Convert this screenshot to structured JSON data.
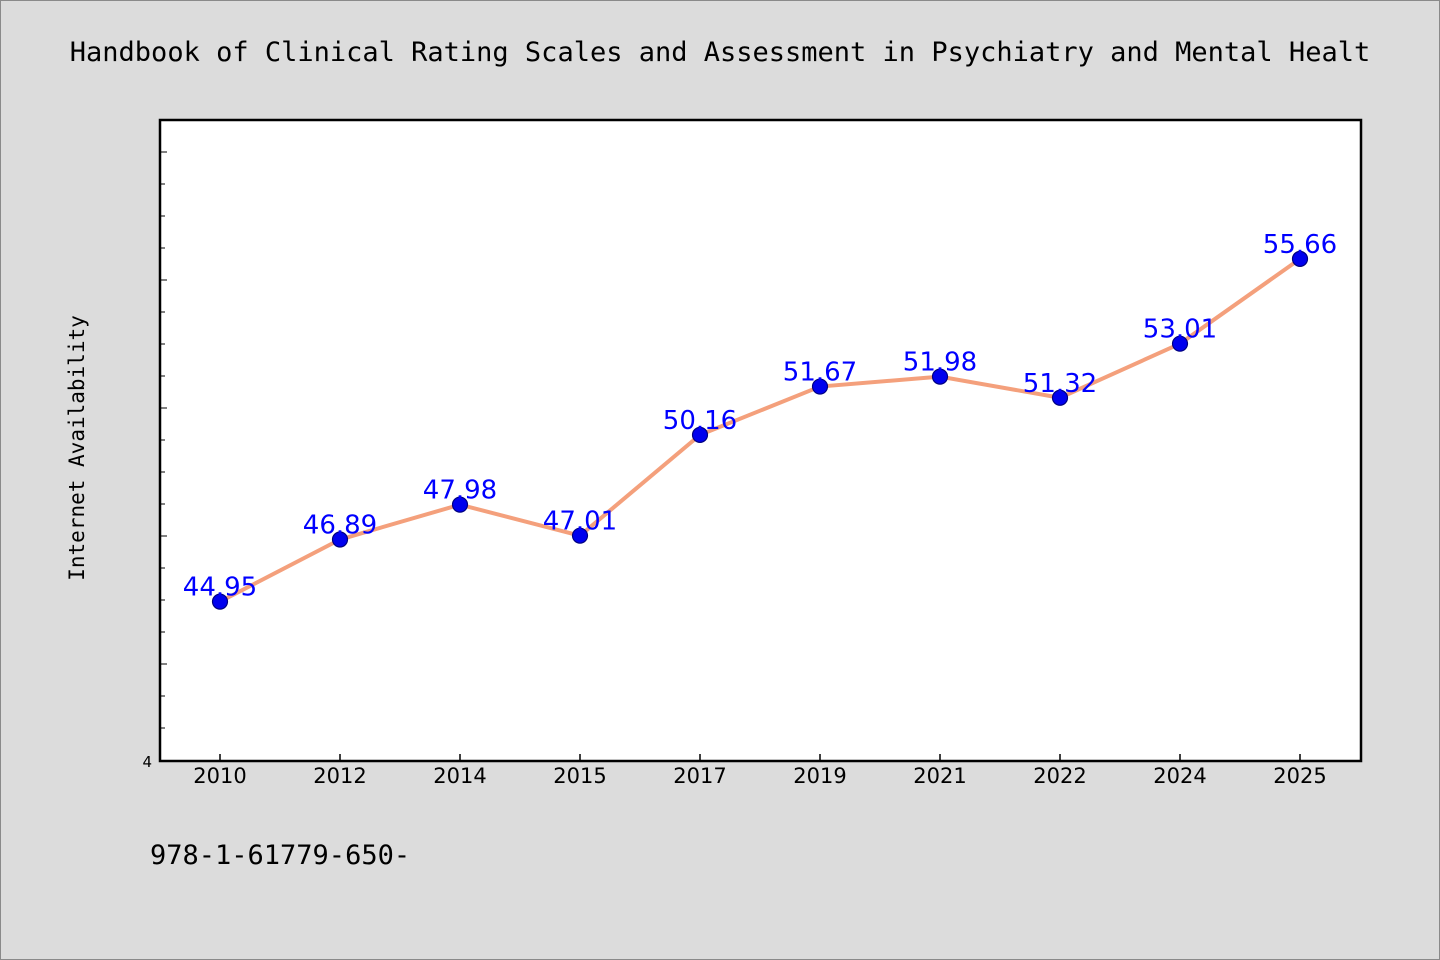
{
  "chart_data": {
    "type": "line",
    "title": "Handbook of Clinical Rating Scales and Assessment in Psychiatry and Mental Healt",
    "ylabel": "Internet Availability",
    "xlabel": "",
    "ymin_label": "4",
    "footer_text": "978-1-61779-650-",
    "categories": [
      "2010",
      "2012",
      "2014",
      "2015",
      "2017",
      "2019",
      "2021",
      "2022",
      "2024",
      "2025"
    ],
    "series": [
      {
        "values": [
          44.95,
          46.89,
          47.98,
          47.01,
          50.16,
          51.67,
          51.98,
          51.32,
          53.01,
          55.66
        ],
        "labels": [
          "44.95",
          "46.89",
          "47.98",
          "47.01",
          "50.16",
          "51.67",
          "51.98",
          "51.32",
          "53.01",
          "55.66"
        ]
      }
    ],
    "ylim": [
      40,
      60
    ],
    "grid": false,
    "colors": {
      "line": "#f4a07c",
      "marker": "#0000ee",
      "marker_edge": "#000080",
      "data_label": "#0000ff",
      "background": "#dcdcdc",
      "plot_background": "#ffffff"
    }
  }
}
